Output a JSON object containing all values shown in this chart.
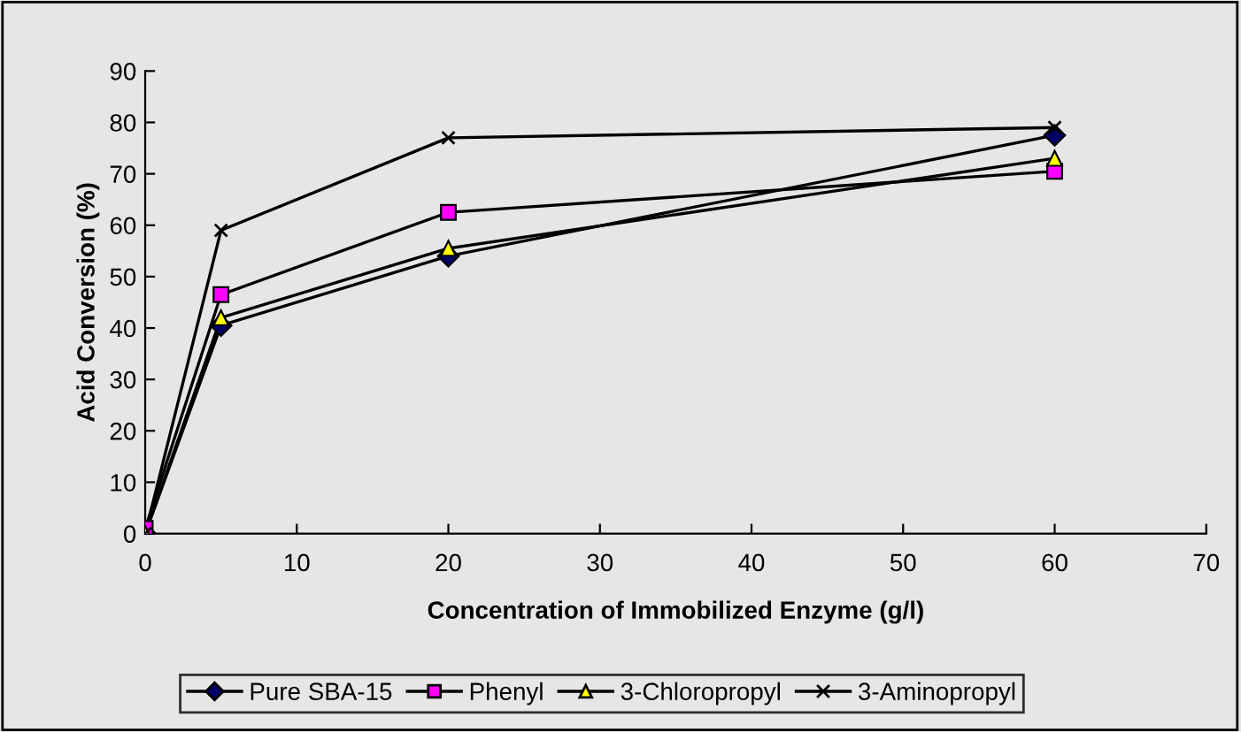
{
  "chart_data": {
    "type": "line",
    "xlabel": "Concentration of Immobilized Enzyme (g/l)",
    "ylabel": "Acid Conversion (%)",
    "x": [
      0,
      5,
      20,
      60
    ],
    "series": [
      {
        "name": "Pure SBA-15",
        "color": "#000066",
        "marker": "diamond",
        "values": [
          0,
          40.5,
          54,
          77.5
        ]
      },
      {
        "name": "Phenyl",
        "color": "#ff00ff",
        "marker": "square",
        "values": [
          1,
          46.5,
          62.5,
          70.5
        ]
      },
      {
        "name": "3-Chloropropyl",
        "color": "#ffff00",
        "marker": "triangle",
        "values": [
          0,
          42,
          55.5,
          73
        ]
      },
      {
        "name": "3-Aminopropyl",
        "color": "#000000",
        "marker": "cross",
        "values": [
          0,
          59,
          77,
          79
        ]
      }
    ],
    "xlim": [
      0,
      70
    ],
    "xticks": [
      0,
      10,
      20,
      30,
      40,
      50,
      60,
      70
    ],
    "ylim": [
      0,
      90
    ],
    "yticks": [
      0,
      10,
      20,
      30,
      40,
      50,
      60,
      70,
      80,
      90
    ],
    "grid": false,
    "legend": "bottom",
    "line_style": "solid"
  }
}
